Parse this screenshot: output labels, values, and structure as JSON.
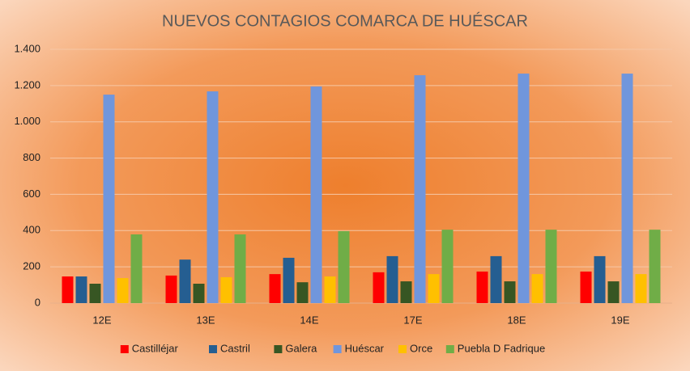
{
  "chart_data": {
    "type": "bar",
    "title": "NUEVOS CONTAGIOS COMARCA DE HUÉSCAR",
    "categories": [
      "12E",
      "13E",
      "14E",
      "17E",
      "18E",
      "19E"
    ],
    "series": [
      {
        "name": "Castilléjar",
        "color": "#ff0000",
        "values": [
          147,
          152,
          160,
          170,
          174,
          174
        ]
      },
      {
        "name": "Castril",
        "color": "#255e91",
        "values": [
          147,
          240,
          250,
          259,
          259,
          259
        ]
      },
      {
        "name": "Galera",
        "color": "#375623",
        "values": [
          107,
          107,
          115,
          120,
          120,
          120
        ]
      },
      {
        "name": "Huéscar",
        "color": "#7096dc",
        "values": [
          1150,
          1168,
          1195,
          1257,
          1266,
          1266
        ]
      },
      {
        "name": "Orce",
        "color": "#ffc000",
        "values": [
          138,
          143,
          147,
          160,
          160,
          160
        ]
      },
      {
        "name": "Puebla D Fadrique",
        "color": "#70ad47",
        "values": [
          379,
          379,
          397,
          405,
          405,
          405
        ]
      }
    ],
    "ylim": [
      0,
      1400
    ],
    "yticks": [
      0,
      200,
      400,
      600,
      800,
      {
        "value": 1000,
        "label": "1.000"
      },
      {
        "value": 1200,
        "label": "1.200"
      },
      {
        "value": 1400,
        "label": "1.400"
      }
    ],
    "grid": true,
    "legend": "bottom"
  }
}
